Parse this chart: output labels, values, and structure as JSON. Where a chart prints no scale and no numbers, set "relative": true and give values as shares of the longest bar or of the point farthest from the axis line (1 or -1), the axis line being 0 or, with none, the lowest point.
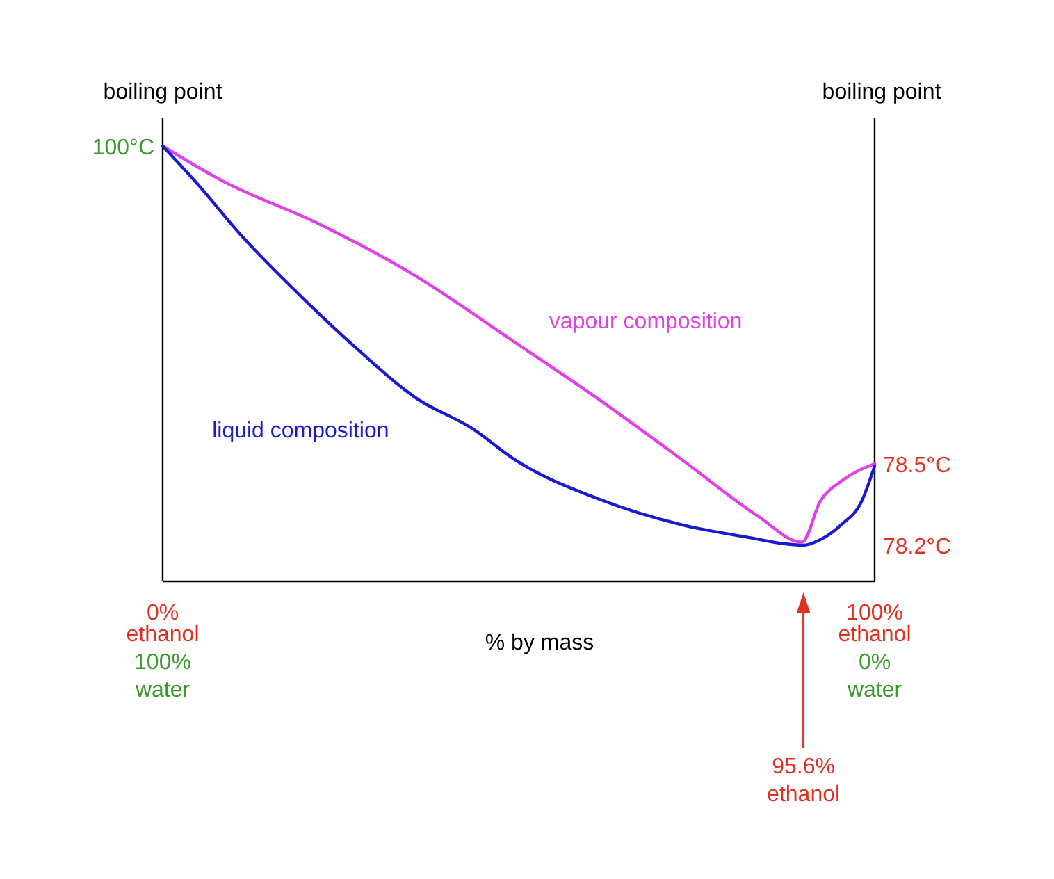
{
  "chart_data": {
    "type": "line",
    "relative": true,
    "xlabel": "% by mass",
    "ylabel": "boiling point",
    "y2label": "boiling point",
    "xlim": [
      0,
      100
    ],
    "xticks": [
      {
        "value": 0,
        "label": "0%"
      },
      {
        "value": 100,
        "label": "100%"
      }
    ],
    "series": [
      {
        "name": "vapour composition",
        "color": "#e040e8",
        "x": [
          0,
          8.4,
          22.1,
          35.7,
          49.4,
          61.1,
          72.9,
          83.6,
          89.8,
          92.4,
          95.3,
          100
        ],
        "values": [
          1,
          0.92,
          0.82,
          0.7,
          0.55,
          0.42,
          0.28,
          0.15,
          0.09,
          0.185,
          0.23,
          0.27
        ]
      },
      {
        "name": "liquid composition",
        "color": "#1a1ad0",
        "x": [
          0,
          4.5,
          11.3,
          19.1,
          26.9,
          35.7,
          43.6,
          49.4,
          61.1,
          72.9,
          82.6,
          87.5,
          90,
          92.4,
          95.3,
          98.2,
          100
        ],
        "values": [
          1,
          0.92,
          0.79,
          0.66,
          0.54,
          0.42,
          0.35,
          0.28,
          0.19,
          0.13,
          0.1,
          0.086,
          0.083,
          0.096,
          0.13,
          0.185,
          0.265
        ]
      }
    ],
    "annotations": [
      "100°C",
      "78.5°C",
      "78.2°C",
      "ethanol\n100%\nwater",
      "ethanol\n0%\nwater",
      "95.6%\nethanol"
    ]
  }
}
